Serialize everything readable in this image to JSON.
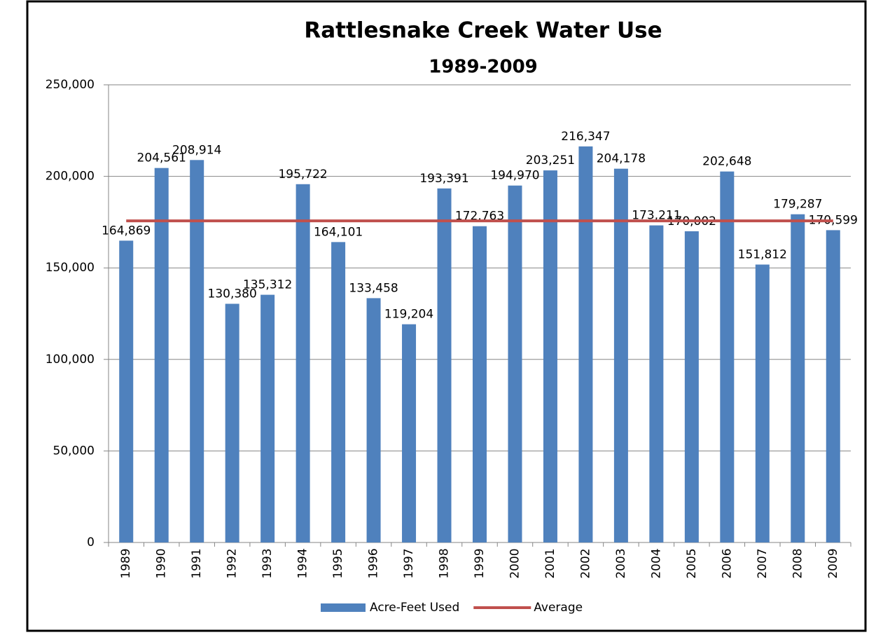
{
  "chart_data": {
    "type": "bar",
    "title": "Rattlesnake Creek Water Use",
    "subtitle": "1989-2009",
    "categories": [
      "1989",
      "1990",
      "1991",
      "1992",
      "1993",
      "1994",
      "1995",
      "1996",
      "1997",
      "1998",
      "1999",
      "2000",
      "2001",
      "2002",
      "2003",
      "2004",
      "2005",
      "2006",
      "2007",
      "2008",
      "2009"
    ],
    "series": [
      {
        "name": "Acre-Feet Used",
        "color": "#4f81bd",
        "values": [
          164869,
          204561,
          208914,
          130380,
          135312,
          195722,
          164101,
          133458,
          119204,
          193391,
          172763,
          194970,
          203251,
          216347,
          204178,
          173211,
          170002,
          202648,
          151812,
          179287,
          170599
        ],
        "value_labels": [
          "164,869",
          "204,561",
          "208,914",
          "130,380",
          "135,312",
          "195,722",
          "164,101",
          "133,458",
          "119,204",
          "193,391",
          "172,763",
          "194,970",
          "203,251",
          "216,347",
          "204,178",
          "173,211",
          "170,002",
          "202,648",
          "151,812",
          "179,287",
          "170,599"
        ]
      },
      {
        "name": "Average",
        "color": "#c0504d",
        "type": "line",
        "values": [
          175666,
          175666,
          175666,
          175666,
          175666,
          175666,
          175666,
          175666,
          175666,
          175666,
          175666,
          175666,
          175666,
          175666,
          175666,
          175666,
          175666,
          175666,
          175666,
          175666,
          175666
        ]
      }
    ],
    "ylim": [
      0,
      250000
    ],
    "yticks": [
      0,
      {
        "value": 50000,
        "label": "50,000"
      },
      {
        "value": 100000,
        "label": "100,000"
      },
      {
        "value": 150000,
        "label": "150,000"
      },
      {
        "value": 200000,
        "label": "200,000"
      },
      {
        "value": 250000,
        "label": "250,000"
      }
    ],
    "grid": true,
    "legend": "bottom"
  }
}
